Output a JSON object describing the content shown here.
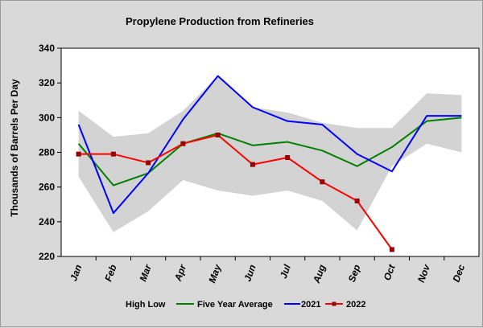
{
  "chart_data": {
    "type": "line",
    "title": "Propylene Production from Refineries",
    "ylabel": "Thousands of Barrels Per Day",
    "xlabel": "",
    "categories": [
      "Jan",
      "Feb",
      "Mar",
      "Apr",
      "May",
      "Jun",
      "Jul",
      "Aug",
      "Sep",
      "Oct",
      "Nov",
      "Dec"
    ],
    "ylim": [
      220,
      340
    ],
    "yticks": [
      220,
      240,
      260,
      280,
      300,
      320,
      340
    ],
    "grid": false,
    "legend_position": "bottom",
    "band": {
      "name": "High Low",
      "color": "#d3d3d3",
      "high": [
        304,
        289,
        291,
        304,
        324,
        306,
        303,
        297,
        294,
        294,
        314,
        313
      ],
      "low": [
        266,
        234,
        246,
        264,
        258,
        255,
        258,
        252,
        235,
        272,
        285,
        280
      ]
    },
    "series": [
      {
        "name": "Five Year Average",
        "color": "#008000",
        "marker": false,
        "values": [
          285,
          261,
          268,
          285,
          291,
          284,
          286,
          281,
          272,
          283,
          298,
          300
        ]
      },
      {
        "name": "2021",
        "color": "#0000ff",
        "marker": false,
        "values": [
          296,
          245,
          268,
          299,
          324,
          306,
          298,
          296,
          279,
          269,
          301,
          301
        ]
      },
      {
        "name": "2022",
        "color": "#ff0000",
        "marker": true,
        "marker_color": "#990000",
        "values": [
          279,
          279,
          274,
          285,
          290,
          273,
          277,
          263,
          252,
          224,
          null,
          null
        ]
      }
    ]
  }
}
